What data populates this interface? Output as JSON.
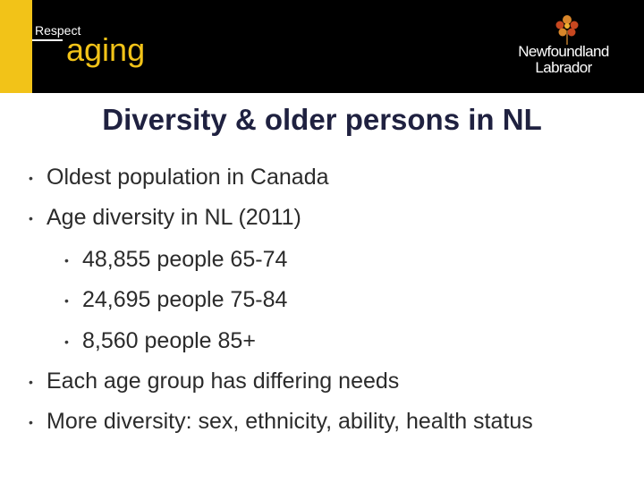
{
  "header": {
    "brand_small": "Respect",
    "brand_big": "aging",
    "logo_line1": "Newfoundland",
    "logo_line2": "Labrador"
  },
  "colors": {
    "accent_yellow": "#f2c318",
    "header_black": "#000000",
    "title_navy": "#1f2140"
  },
  "title": "Diversity & older persons in NL",
  "bullets": [
    {
      "level": 1,
      "text": "Oldest population in Canada"
    },
    {
      "level": 1,
      "text": "Age diversity in NL (2011)"
    },
    {
      "level": 2,
      "text": "48,855 people 65-74"
    },
    {
      "level": 2,
      "text": "24,695 people 75-84"
    },
    {
      "level": 2,
      "text": "8,560 people 85+"
    },
    {
      "level": 1,
      "text": "Each age group has differing needs"
    },
    {
      "level": 1,
      "text": "More diversity: sex, ethnicity, ability, health status"
    }
  ],
  "bullet_glyph": "•",
  "icons": {
    "logo_flower": "pitcher-plant-flower-icon"
  }
}
